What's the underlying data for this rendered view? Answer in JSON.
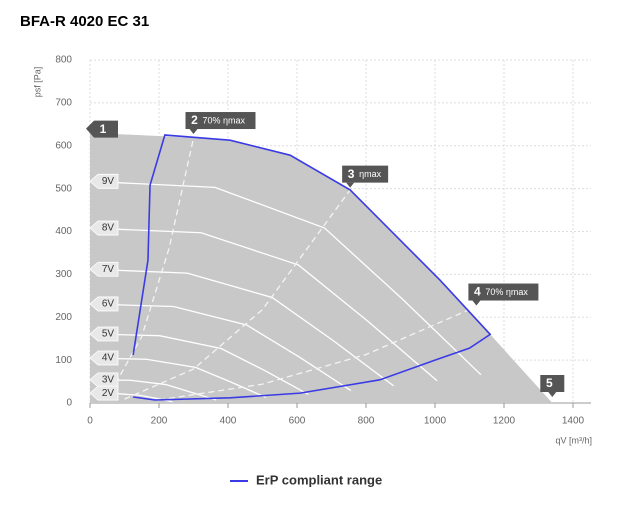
{
  "chart_data": {
    "type": "line",
    "title": "BFA-R 4020 EC 31",
    "x_label": "qV [m³/h]",
    "y_label": "psf [Pa]",
    "xlim": [
      0,
      1400
    ],
    "ylim": [
      0,
      800
    ],
    "xticks": [
      0,
      200,
      400,
      600,
      800,
      1000,
      1200,
      1400
    ],
    "yticks": [
      0,
      100,
      200,
      300,
      400,
      500,
      600,
      700,
      800
    ],
    "grid": true,
    "envelope": {
      "color": "#c8c8c8",
      "x": [
        0,
        220,
        406,
        580,
        754,
        1014,
        1160,
        1340
      ],
      "values": [
        630,
        622,
        613,
        578,
        497,
        287,
        160,
        0
      ]
    },
    "speed_curves": [
      {
        "name": "9V",
        "x": [
          0,
          362,
          680,
          906,
          1133
        ],
        "values": [
          517,
          503,
          408,
          242,
          66
        ]
      },
      {
        "name": "8V",
        "x": [
          0,
          322,
          604,
          805,
          1006
        ],
        "values": [
          408,
          397,
          322,
          191,
          52
        ]
      },
      {
        "name": "7V",
        "x": [
          0,
          282,
          528,
          704,
          880
        ],
        "values": [
          312,
          303,
          246,
          146,
          40
        ]
      },
      {
        "name": "6V",
        "x": [
          0,
          242,
          454,
          605,
          756
        ],
        "values": [
          231,
          225,
          182,
          108,
          29
        ]
      },
      {
        "name": "5V",
        "x": [
          0,
          202,
          380,
          506,
          633
        ],
        "values": [
          161,
          157,
          127,
          76,
          20
        ]
      },
      {
        "name": "4V",
        "x": [
          0,
          163,
          306,
          408,
          510
        ],
        "values": [
          105,
          102,
          83,
          49,
          13
        ]
      },
      {
        "name": "3V",
        "x": [
          0,
          117,
          220,
          293,
          366
        ],
        "values": [
          54,
          53,
          43,
          25,
          7
        ]
      },
      {
        "name": "2V",
        "x": [
          0,
          76,
          143,
          191,
          239
        ],
        "values": [
          23,
          22,
          18,
          11,
          3
        ]
      }
    ],
    "efficiency_lines": [
      {
        "x": [
          60,
          150,
          230,
          300
        ],
        "values": [
          25,
          155,
          363,
          618
        ]
      },
      {
        "x": [
          100,
          300,
          500,
          754
        ],
        "values": [
          9,
          79,
          218,
          497
        ]
      },
      {
        "x": [
          200,
          500,
          800,
          1120
        ],
        "values": [
          7,
          44,
          113,
          225
        ]
      }
    ],
    "markers": [
      {
        "label": "1",
        "x": 0,
        "y": 640
      },
      {
        "label": "2",
        "note": "70% ηmax",
        "x": 300,
        "y": 625
      },
      {
        "label": "3",
        "note": "ηmax",
        "x": 754,
        "y": 500
      },
      {
        "label": "4",
        "note": "70% ηmax",
        "x": 1120,
        "y": 225
      },
      {
        "label": "5",
        "x": 1340,
        "y": 0
      }
    ],
    "series": [
      {
        "name": "ErP compliant range",
        "color": "#3b3be6",
        "x": [
          125,
          168,
          174,
          217,
          406,
          580,
          754,
          1014,
          1160,
          1100,
          1000,
          840,
          609,
          406,
          188,
          125
        ],
        "values": [
          112,
          333,
          508,
          625,
          613,
          578,
          497,
          287,
          160,
          128,
          100,
          54,
          23,
          12,
          7,
          14
        ]
      }
    ]
  }
}
